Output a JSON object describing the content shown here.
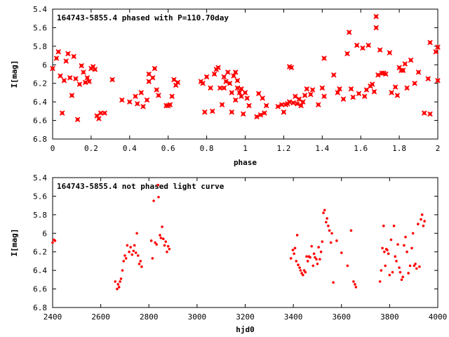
{
  "chart_data": [
    {
      "type": "scatter",
      "title": "164743-5855.4 phased with P=110.70day",
      "xlabel": "phase",
      "ylabel": "I[mag]",
      "xlim": [
        0,
        2
      ],
      "ylim": [
        6.8,
        5.4
      ],
      "y_inverted": true,
      "xticks": [
        "0",
        "0.2",
        "0.4",
        "0.6",
        "0.8",
        "1",
        "1.2",
        "1.4",
        "1.6",
        "1.8",
        "2"
      ],
      "yticks": [
        "5.4",
        "5.6",
        "5.8",
        "6",
        "6.2",
        "6.4",
        "6.6",
        "6.8"
      ],
      "marker_color": "#ff0000",
      "marker": "x",
      "points": [
        [
          0.0,
          6.04
        ],
        [
          0.02,
          5.93
        ],
        [
          0.03,
          5.86
        ],
        [
          0.04,
          6.12
        ],
        [
          0.05,
          6.52
        ],
        [
          0.06,
          6.17
        ],
        [
          0.07,
          5.96
        ],
        [
          0.08,
          5.88
        ],
        [
          0.09,
          6.14
        ],
        [
          0.1,
          6.33
        ],
        [
          0.11,
          5.91
        ],
        [
          0.12,
          6.15
        ],
        [
          0.13,
          6.59
        ],
        [
          0.14,
          6.21
        ],
        [
          0.15,
          6.01
        ],
        [
          0.16,
          6.08
        ],
        [
          0.17,
          6.19
        ],
        [
          0.18,
          6.14
        ],
        [
          0.19,
          6.18
        ],
        [
          0.2,
          6.04
        ],
        [
          0.21,
          6.02
        ],
        [
          0.22,
          6.05
        ],
        [
          0.23,
          6.55
        ],
        [
          0.24,
          6.58
        ],
        [
          0.25,
          6.52
        ],
        [
          0.27,
          6.52
        ],
        [
          0.31,
          6.16
        ],
        [
          0.36,
          6.38
        ],
        [
          0.4,
          6.4
        ],
        [
          0.43,
          6.34
        ],
        [
          0.44,
          6.42
        ],
        [
          0.46,
          6.3
        ],
        [
          0.47,
          6.45
        ],
        [
          0.49,
          6.38
        ],
        [
          0.5,
          6.18
        ],
        [
          0.5,
          6.1
        ],
        [
          0.52,
          6.14
        ],
        [
          0.53,
          6.04
        ],
        [
          0.54,
          6.27
        ],
        [
          0.55,
          6.33
        ],
        [
          0.59,
          6.44
        ],
        [
          0.6,
          6.44
        ],
        [
          0.61,
          6.43
        ],
        [
          0.62,
          6.34
        ],
        [
          0.63,
          6.16
        ],
        [
          0.64,
          6.22
        ],
        [
          0.65,
          6.19
        ],
        [
          0.77,
          6.18
        ],
        [
          0.78,
          6.2
        ],
        [
          0.79,
          6.51
        ],
        [
          0.8,
          6.13
        ],
        [
          0.82,
          6.25
        ],
        [
          0.83,
          6.5
        ],
        [
          0.84,
          6.1
        ],
        [
          0.85,
          6.05
        ],
        [
          0.86,
          6.03
        ],
        [
          0.87,
          6.25
        ],
        [
          0.88,
          6.43
        ],
        [
          0.89,
          6.25
        ],
        [
          0.89,
          6.13
        ],
        [
          0.9,
          6.18
        ],
        [
          0.91,
          6.08
        ],
        [
          0.92,
          6.2
        ],
        [
          0.93,
          6.51
        ],
        [
          0.93,
          6.3
        ],
        [
          0.94,
          6.12
        ],
        [
          0.95,
          6.38
        ],
        [
          0.95,
          6.08
        ],
        [
          0.96,
          6.17
        ],
        [
          0.96,
          6.25
        ],
        [
          0.97,
          6.3
        ],
        [
          0.98,
          6.34
        ],
        [
          0.98,
          6.26
        ],
        [
          0.99,
          6.53
        ],
        [
          1.0,
          6.3
        ],
        [
          1.01,
          6.36
        ],
        [
          1.02,
          6.44
        ],
        [
          1.06,
          6.56
        ],
        [
          1.07,
          6.31
        ],
        [
          1.08,
          6.54
        ],
        [
          1.09,
          6.36
        ],
        [
          1.1,
          6.52
        ],
        [
          1.11,
          6.44
        ],
        [
          1.17,
          6.45
        ],
        [
          1.19,
          6.43
        ],
        [
          1.2,
          6.51
        ],
        [
          1.21,
          6.43
        ],
        [
          1.22,
          6.42
        ],
        [
          1.23,
          6.4
        ],
        [
          1.23,
          6.02
        ],
        [
          1.24,
          6.03
        ],
        [
          1.25,
          6.41
        ],
        [
          1.26,
          6.34
        ],
        [
          1.27,
          6.42
        ],
        [
          1.28,
          6.37
        ],
        [
          1.29,
          6.44
        ],
        [
          1.3,
          6.4
        ],
        [
          1.31,
          6.33
        ],
        [
          1.32,
          6.26
        ],
        [
          1.34,
          6.32
        ],
        [
          1.35,
          6.27
        ],
        [
          1.38,
          6.43
        ],
        [
          1.4,
          6.25
        ],
        [
          1.41,
          6.34
        ],
        [
          1.41,
          5.93
        ],
        [
          1.46,
          6.11
        ],
        [
          1.48,
          6.3
        ],
        [
          1.49,
          6.26
        ],
        [
          1.51,
          6.37
        ],
        [
          1.53,
          5.88
        ],
        [
          1.54,
          5.65
        ],
        [
          1.55,
          6.26
        ],
        [
          1.56,
          6.35
        ],
        [
          1.58,
          5.79
        ],
        [
          1.59,
          6.31
        ],
        [
          1.61,
          5.82
        ],
        [
          1.62,
          6.34
        ],
        [
          1.63,
          6.27
        ],
        [
          1.64,
          5.79
        ],
        [
          1.65,
          6.23
        ],
        [
          1.66,
          6.21
        ],
        [
          1.67,
          6.29
        ],
        [
          1.68,
          5.48
        ],
        [
          1.68,
          5.6
        ],
        [
          1.69,
          6.11
        ],
        [
          1.7,
          5.84
        ],
        [
          1.71,
          6.09
        ],
        [
          1.72,
          6.09
        ],
        [
          1.73,
          6.1
        ],
        [
          1.75,
          5.87
        ],
        [
          1.76,
          6.3
        ],
        [
          1.78,
          6.24
        ],
        [
          1.79,
          6.33
        ],
        [
          1.8,
          6.03
        ],
        [
          1.81,
          6.06
        ],
        [
          1.82,
          6.06
        ],
        [
          1.83,
          5.99
        ],
        [
          1.84,
          6.25
        ],
        [
          1.86,
          5.95
        ],
        [
          1.88,
          6.2
        ],
        [
          1.9,
          6.08
        ],
        [
          1.93,
          6.52
        ],
        [
          1.95,
          6.15
        ],
        [
          1.96,
          6.53
        ],
        [
          1.96,
          5.76
        ],
        [
          1.99,
          5.86
        ],
        [
          2.0,
          6.17
        ],
        [
          2.0,
          5.81
        ]
      ]
    },
    {
      "type": "scatter",
      "title": "164743-5855.4 not phased light curve",
      "xlabel": "hjd0",
      "ylabel": "I[mag]",
      "xlim": [
        2400,
        4000
      ],
      "ylim": [
        6.8,
        5.4
      ],
      "y_inverted": true,
      "xticks": [
        "2400",
        "2600",
        "2800",
        "3000",
        "3200",
        "3400",
        "3600",
        "3800",
        "4000"
      ],
      "yticks": [
        "5.4",
        "5.6",
        "5.8",
        "6",
        "6.2",
        "6.4",
        "6.6",
        "6.8"
      ],
      "marker_color": "#ff0000",
      "marker": "dot",
      "points": [
        [
          2400,
          6.1
        ],
        [
          2405,
          6.07
        ],
        [
          2410,
          6.08
        ],
        [
          2660,
          6.52
        ],
        [
          2668,
          6.6
        ],
        [
          2672,
          6.55
        ],
        [
          2676,
          6.58
        ],
        [
          2680,
          6.52
        ],
        [
          2684,
          6.49
        ],
        [
          2690,
          6.4
        ],
        [
          2695,
          6.3
        ],
        [
          2700,
          6.24
        ],
        [
          2705,
          6.27
        ],
        [
          2710,
          6.13
        ],
        [
          2718,
          6.2
        ],
        [
          2724,
          6.15
        ],
        [
          2730,
          6.23
        ],
        [
          2736,
          6.19
        ],
        [
          2740,
          6.13
        ],
        [
          2746,
          6.21
        ],
        [
          2750,
          6.0
        ],
        [
          2755,
          6.24
        ],
        [
          2760,
          6.33
        ],
        [
          2765,
          6.3
        ],
        [
          2770,
          6.36
        ],
        [
          2810,
          6.08
        ],
        [
          2815,
          6.27
        ],
        [
          2820,
          5.65
        ],
        [
          2826,
          6.1
        ],
        [
          2832,
          6.12
        ],
        [
          2838,
          5.48
        ],
        [
          2840,
          5.61
        ],
        [
          2846,
          6.02
        ],
        [
          2850,
          6.05
        ],
        [
          2855,
          5.93
        ],
        [
          2860,
          6.06
        ],
        [
          2865,
          6.13
        ],
        [
          2870,
          6.09
        ],
        [
          2875,
          6.2
        ],
        [
          2880,
          6.14
        ],
        [
          2885,
          6.17
        ],
        [
          3390,
          6.27
        ],
        [
          3398,
          6.18
        ],
        [
          3403,
          6.22
        ],
        [
          3407,
          6.16
        ],
        [
          3412,
          6.3
        ],
        [
          3416,
          6.02
        ],
        [
          3420,
          6.34
        ],
        [
          3426,
          6.37
        ],
        [
          3430,
          6.4
        ],
        [
          3435,
          6.43
        ],
        [
          3440,
          6.45
        ],
        [
          3445,
          6.4
        ],
        [
          3450,
          6.42
        ],
        [
          3455,
          6.25
        ],
        [
          3460,
          6.3
        ],
        [
          3465,
          6.25
        ],
        [
          3470,
          6.26
        ],
        [
          3476,
          6.14
        ],
        [
          3482,
          6.35
        ],
        [
          3486,
          6.22
        ],
        [
          3490,
          6.26
        ],
        [
          3496,
          6.28
        ],
        [
          3500,
          6.33
        ],
        [
          3505,
          6.15
        ],
        [
          3510,
          6.28
        ],
        [
          3515,
          6.2
        ],
        [
          3520,
          6.09
        ],
        [
          3525,
          5.78
        ],
        [
          3530,
          5.75
        ],
        [
          3536,
          5.88
        ],
        [
          3540,
          5.84
        ],
        [
          3545,
          5.92
        ],
        [
          3550,
          5.97
        ],
        [
          3556,
          6.1
        ],
        [
          3560,
          6.0
        ],
        [
          3566,
          6.53
        ],
        [
          3580,
          6.08
        ],
        [
          3600,
          6.21
        ],
        [
          3625,
          6.35
        ],
        [
          3640,
          5.97
        ],
        [
          3650,
          6.52
        ],
        [
          3656,
          6.55
        ],
        [
          3660,
          6.58
        ],
        [
          3760,
          6.52
        ],
        [
          3765,
          6.4
        ],
        [
          3770,
          6.16
        ],
        [
          3775,
          5.92
        ],
        [
          3778,
          6.2
        ],
        [
          3782,
          6.35
        ],
        [
          3786,
          6.17
        ],
        [
          3790,
          6.18
        ],
        [
          3795,
          6.22
        ],
        [
          3800,
          6.45
        ],
        [
          3806,
          6.07
        ],
        [
          3812,
          6.42
        ],
        [
          3818,
          5.92
        ],
        [
          3823,
          6.25
        ],
        [
          3828,
          6.3
        ],
        [
          3834,
          6.12
        ],
        [
          3840,
          6.37
        ],
        [
          3844,
          6.42
        ],
        [
          3850,
          6.5
        ],
        [
          3855,
          6.47
        ],
        [
          3860,
          6.13
        ],
        [
          3866,
          6.04
        ],
        [
          3872,
          6.2
        ],
        [
          3878,
          6.43
        ],
        [
          3885,
          6.35
        ],
        [
          3892,
          6.16
        ],
        [
          3897,
          6.0
        ],
        [
          3902,
          6.35
        ],
        [
          3907,
          6.33
        ],
        [
          3912,
          6.38
        ],
        [
          3918,
          5.9
        ],
        [
          3924,
          6.36
        ],
        [
          3930,
          5.85
        ],
        [
          3935,
          5.8
        ],
        [
          3940,
          5.92
        ],
        [
          3945,
          5.87
        ]
      ]
    }
  ]
}
